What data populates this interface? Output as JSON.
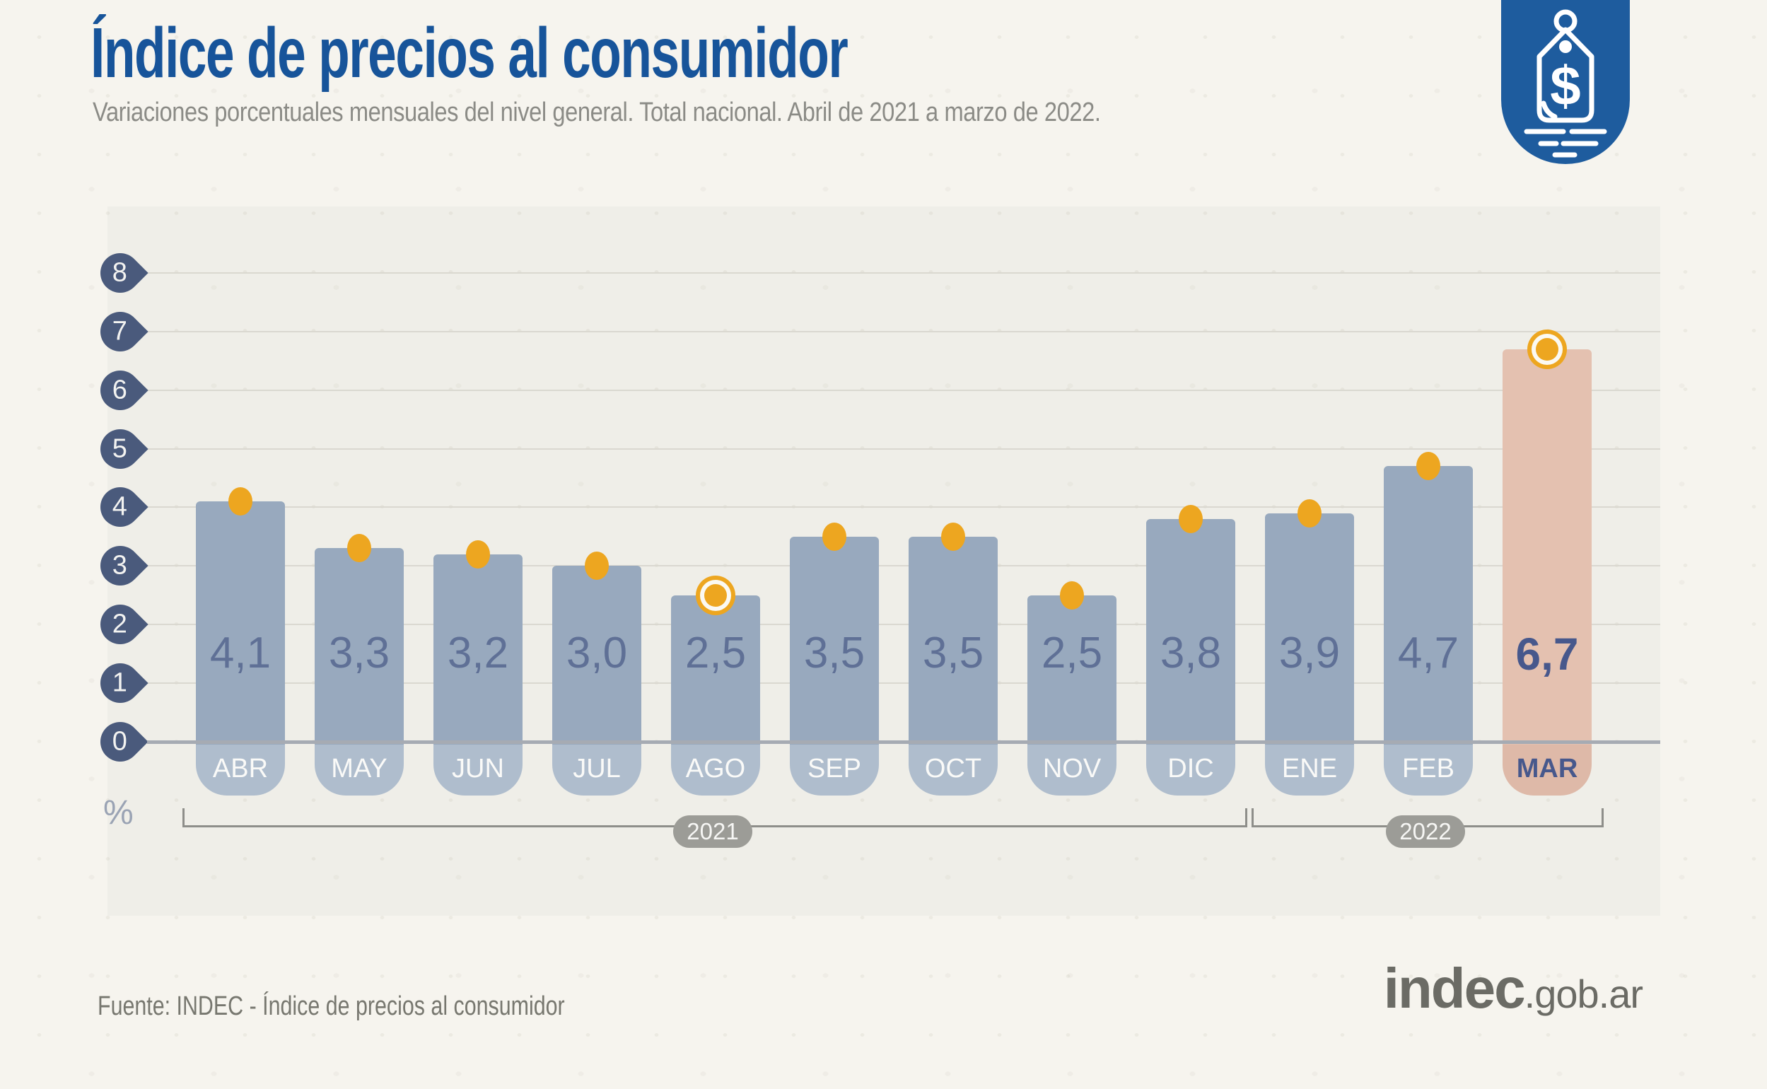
{
  "header": {
    "title": "Índice de precios al consumidor",
    "subtitle": "Variaciones porcentuales mensuales del nivel general. Total nacional. Abril de 2021 a marzo de 2022."
  },
  "badge": {
    "icon": "price-tag-icon"
  },
  "chart_data": {
    "type": "bar",
    "title": "Índice de precios al consumidor",
    "categories": [
      "ABR",
      "MAY",
      "JUN",
      "JUL",
      "AGO",
      "SEP",
      "OCT",
      "NOV",
      "DIC",
      "ENE",
      "FEB",
      "MAR"
    ],
    "values": [
      4.1,
      3.3,
      3.2,
      3.0,
      2.5,
      3.5,
      3.5,
      2.5,
      3.8,
      3.9,
      4.7,
      6.7
    ],
    "value_labels": [
      "4,1",
      "3,3",
      "3,2",
      "3,0",
      "2,5",
      "3,5",
      "3,5",
      "2,5",
      "3,8",
      "3,9",
      "4,7",
      "6,7"
    ],
    "ylabel": "%",
    "yticks": [
      0,
      1,
      2,
      3,
      4,
      5,
      6,
      7,
      8
    ],
    "ylim": [
      0,
      8
    ],
    "grid": true,
    "legend": "none",
    "years": [
      {
        "label": "2021",
        "from_index": 0,
        "to_index": 8
      },
      {
        "label": "2022",
        "from_index": 9,
        "to_index": 11
      }
    ],
    "highlight_index": 11,
    "ring_marker_indices": [
      4,
      11
    ],
    "colors": {
      "bar": "#98A9BE",
      "bar_highlight": "#E4C1B0",
      "month_pill": "#AFBDCD",
      "month_pill_highlight": "#DEB9A8",
      "value_text": "#5F7096",
      "value_text_highlight": "#47588C",
      "dot": "#EDA620",
      "ring_gap": "#FBF9F2",
      "axis_drop": "#4A5A7C",
      "year_pill": "#9C9C97",
      "accent_blue": "#17549A"
    }
  },
  "footer": {
    "source": "Fuente: INDEC - Índice de precios al consumidor",
    "logo_main": "indec",
    "logo_suffix": ".gob.ar"
  }
}
